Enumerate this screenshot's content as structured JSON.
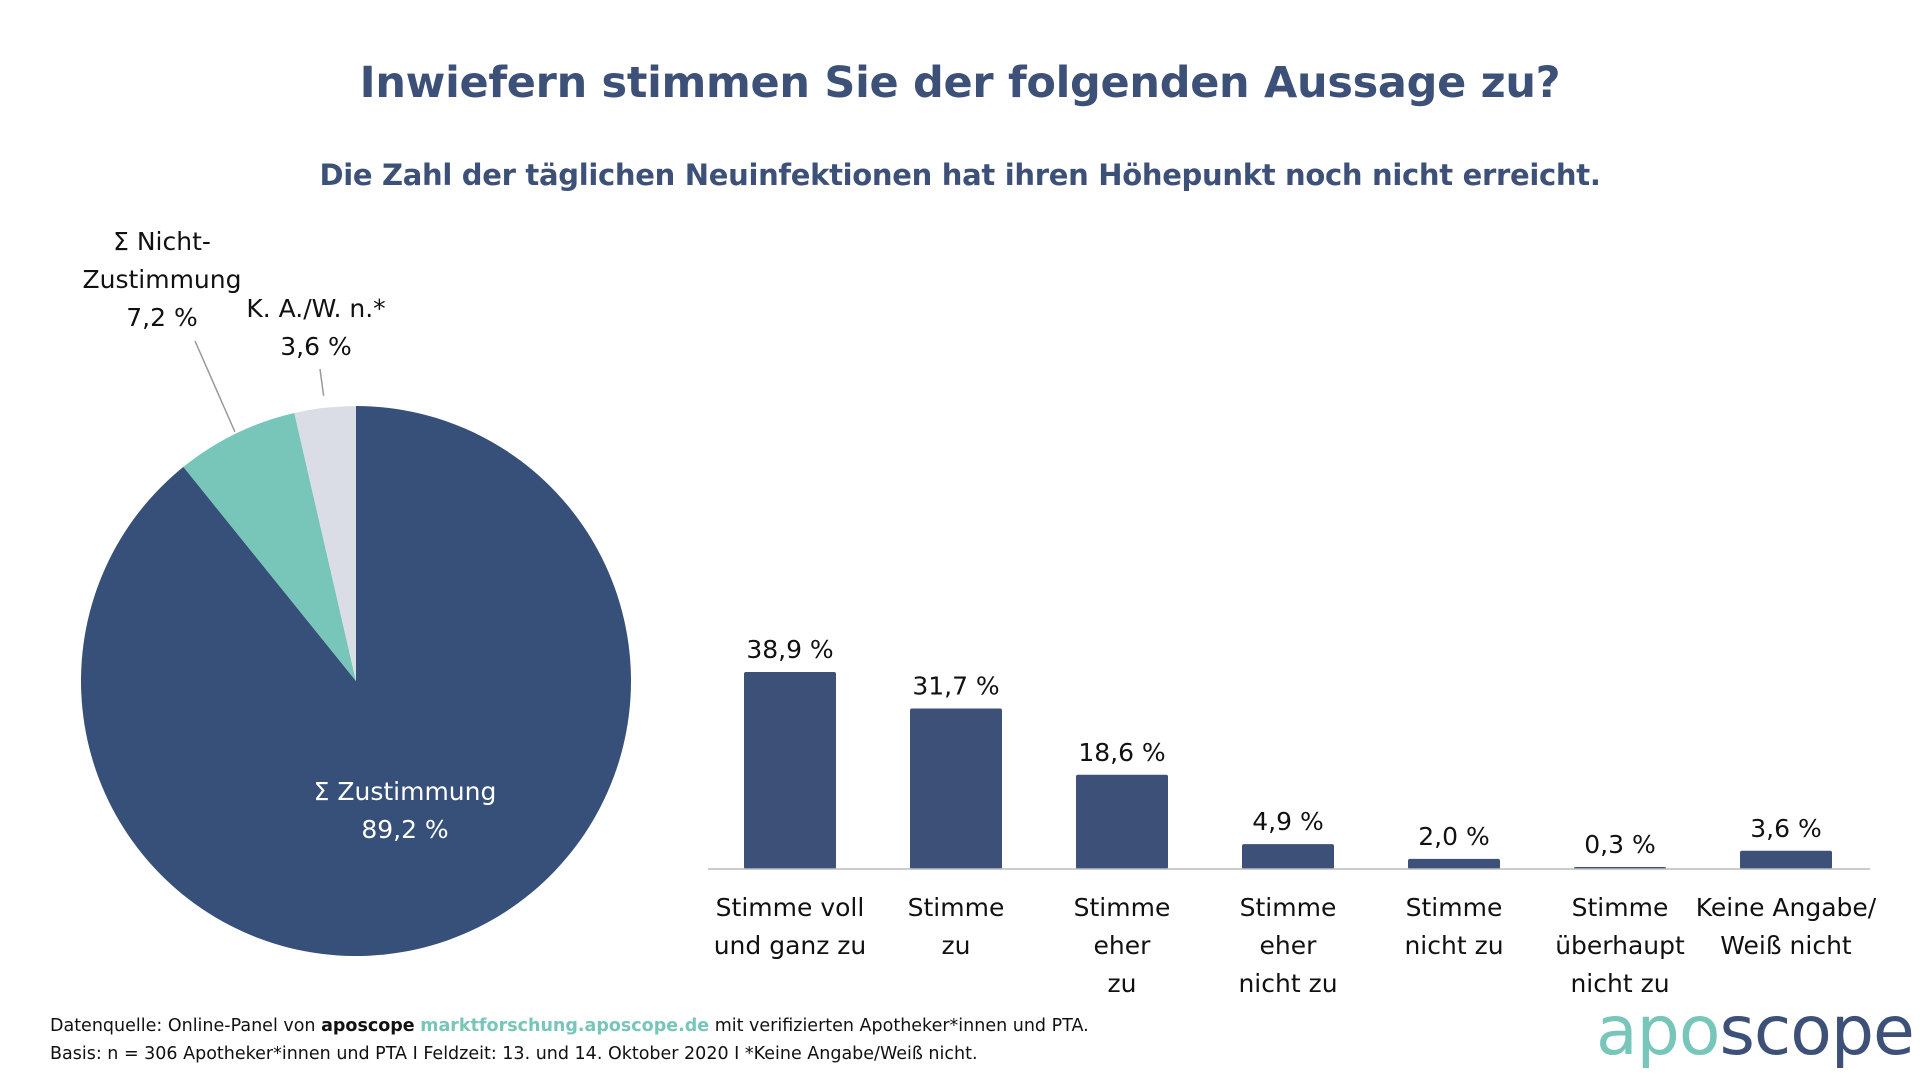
{
  "colors": {
    "zustimmung": "#36507a",
    "nicht_zustimmung": "#78c5ba",
    "ka": "#dadde5",
    "bars": "#3d5078",
    "title": "#3d5078",
    "accent": "#78c5ba"
  },
  "header": {
    "title": "Inwiefern stimmen Sie der folgenden Aussage zu?",
    "subtitle": "Die Zahl der täglichen Neuinfektionen hat ihren Höhepunkt noch nicht erreicht."
  },
  "chart_data": [
    {
      "type": "pie",
      "slices": [
        {
          "label": [
            "Σ Zustimmung"
          ],
          "value": 89.2,
          "value_label": "89,2 %",
          "color": "#36507a"
        },
        {
          "label": [
            "Σ Nicht-",
            "Zustimmung"
          ],
          "value": 7.2,
          "value_label": "7,2 %",
          "color": "#78c5ba"
        },
        {
          "label": [
            "K. A./W. n.*"
          ],
          "value": 3.6,
          "value_label": "3,6 %",
          "color": "#dadde5"
        }
      ]
    },
    {
      "type": "bar",
      "categories": [
        [
          "Stimme voll",
          "und ganz zu"
        ],
        [
          "Stimme",
          "zu"
        ],
        [
          "Stimme",
          "eher",
          "zu"
        ],
        [
          "Stimme",
          "eher",
          "nicht zu"
        ],
        [
          "Stimme",
          "nicht zu"
        ],
        [
          "Stimme",
          "überhaupt",
          "nicht zu"
        ],
        [
          "Keine Angabe/",
          "Weiß nicht"
        ]
      ],
      "values": [
        38.9,
        31.7,
        18.6,
        4.9,
        2.0,
        0.3,
        3.6
      ],
      "value_labels": [
        "38,9 %",
        "31,7 %",
        "18,6 %",
        "4,9 %",
        "2,0 %",
        "0,3 %",
        "3,6 %"
      ],
      "ylim": [
        0,
        40
      ]
    }
  ],
  "footer": {
    "line1_prefix": "Datenquelle: Online-Panel von ",
    "brand": "aposcope",
    "link": "marktforschung.aposcope.de",
    "line1_suffix": " mit verifizierten Apotheker*innen und PTA.",
    "line2": "Basis: n = 306 Apotheker*innen und PTA I Feldzeit: 13. und 14. Oktober 2020 I *Keine Angabe/Weiß nicht."
  },
  "logo": {
    "part1": "apo",
    "part2": "scope"
  }
}
